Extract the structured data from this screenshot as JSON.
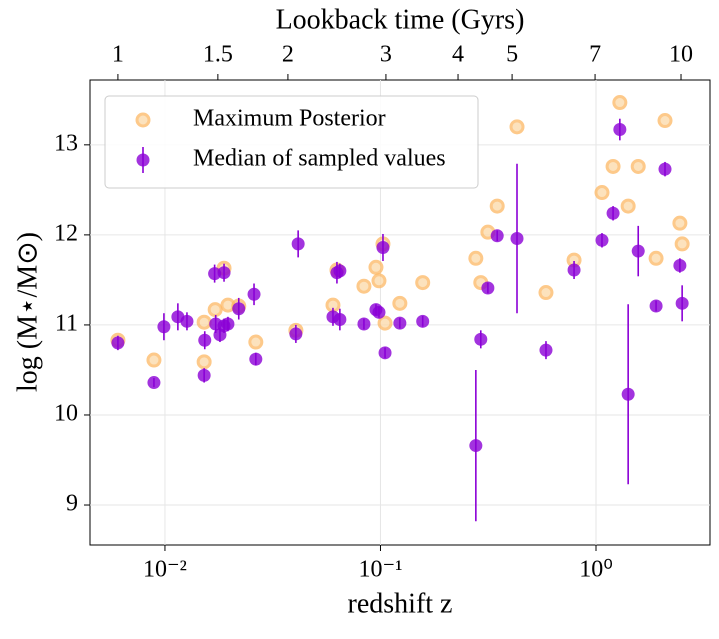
{
  "chart_data": {
    "type": "scatter",
    "xlabel": "redshift z",
    "ylabel": "log (M⋆/M⊙)",
    "x2label": "Lookback time (Gyrs)",
    "xscale": "log",
    "xlim": [
      0.00449,
      3.38
    ],
    "ylim": [
      8.556,
      13.72
    ],
    "xticks": [
      {
        "value": 0.01,
        "label": "10⁻²"
      },
      {
        "value": 0.1,
        "label": "10⁻¹"
      },
      {
        "value": 1,
        "label": "10⁰"
      }
    ],
    "yticks": [
      9,
      10,
      11,
      12,
      13
    ],
    "x2ticks": [
      {
        "value": 0.00605,
        "label": "1"
      },
      {
        "value": 0.0176,
        "label": "1.5"
      },
      {
        "value": 0.0372,
        "label": "2"
      },
      {
        "value": 0.106,
        "label": "3"
      },
      {
        "value": 0.229,
        "label": "4"
      },
      {
        "value": 0.408,
        "label": "5"
      },
      {
        "value": 0.99,
        "label": "7"
      },
      {
        "value": 2.48,
        "label": "10"
      }
    ],
    "grid": true,
    "legend": "upper left",
    "series": [
      {
        "name": "Maximum Posterior",
        "color": "#fdb863",
        "x": [
          0.00605,
          0.00889,
          0.0152,
          0.0152,
          0.0171,
          0.0188,
          0.0196,
          0.022,
          0.0264,
          0.0405,
          0.0602,
          0.0628,
          0.0838,
          0.0953,
          0.0984,
          0.1027,
          0.105,
          0.123,
          0.157,
          0.277,
          0.292,
          0.315,
          0.348,
          0.43,
          0.586,
          0.791,
          1.066,
          1.2,
          1.29,
          1.41,
          1.57,
          1.9,
          2.09,
          2.45,
          2.51
        ],
        "values": [
          10.83,
          10.61,
          10.59,
          11.03,
          11.17,
          11.63,
          11.22,
          11.21,
          10.81,
          10.94,
          11.22,
          11.61,
          11.43,
          11.64,
          11.49,
          11.9,
          11.02,
          11.24,
          11.47,
          11.74,
          11.47,
          12.03,
          12.32,
          13.2,
          11.36,
          11.72,
          12.47,
          12.76,
          13.47,
          12.32,
          12.76,
          11.74,
          13.27,
          12.13,
          11.9
        ]
      },
      {
        "name": "Median of sampled values",
        "color": "#8b00d6",
        "x": [
          0.00605,
          0.00889,
          0.00989,
          0.01148,
          0.01265,
          0.0152,
          0.0153,
          0.017,
          0.0172,
          0.018,
          0.0188,
          0.0188,
          0.0196,
          0.022,
          0.0259,
          0.0264,
          0.0405,
          0.0415,
          0.0602,
          0.0628,
          0.0648,
          0.0648,
          0.0838,
          0.0953,
          0.0984,
          0.1027,
          0.105,
          0.123,
          0.157,
          0.277,
          0.292,
          0.315,
          0.348,
          0.43,
          0.586,
          0.791,
          1.066,
          1.2,
          1.29,
          1.41,
          1.57,
          1.9,
          2.09,
          2.45,
          2.51
        ],
        "values": [
          10.8,
          10.36,
          10.98,
          11.09,
          11.04,
          10.44,
          10.83,
          11.57,
          11.01,
          10.89,
          11.58,
          10.99,
          11.01,
          11.18,
          11.34,
          10.62,
          10.9,
          11.9,
          11.09,
          11.58,
          11.6,
          11.06,
          11.01,
          11.17,
          11.14,
          11.86,
          10.69,
          11.02,
          11.04,
          9.66,
          10.84,
          11.41,
          11.99,
          11.96,
          10.72,
          11.61,
          11.94,
          12.24,
          13.17,
          10.23,
          11.82,
          11.21,
          12.73,
          11.66,
          11.24
        ],
        "errors": [
          0.08,
          0.05,
          0.15,
          0.15,
          0.1,
          0.08,
          0.1,
          0.1,
          0.1,
          0.08,
          0.1,
          0.08,
          0.08,
          0.12,
          0.12,
          0.07,
          0.1,
          0.15,
          0.1,
          0.12,
          0.08,
          0.12,
          0.06,
          0.06,
          0.06,
          0.15,
          0.06,
          0.06,
          0.06,
          0.84,
          0.1,
          0.06,
          0.06,
          0.83,
          0.1,
          0.1,
          0.08,
          0.08,
          0.12,
          1.0,
          0.28,
          0.06,
          0.08,
          0.08,
          0.2
        ]
      }
    ]
  }
}
